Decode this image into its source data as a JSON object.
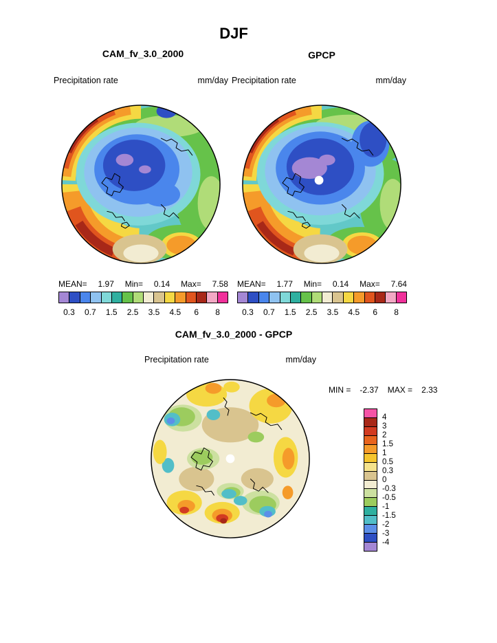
{
  "figure": {
    "season_title": "DJF",
    "diff_title": "CAM_fv_3.0_2000 - GPCP"
  },
  "panels": {
    "cam": {
      "title": "CAM_fv_3.0_2000",
      "field": "Precipitation rate",
      "units": "mm/day",
      "mean_label": "MEAN=",
      "mean": "1.97",
      "min_label": "Min=",
      "min": "0.14",
      "max_label": "Max=",
      "max": "7.58"
    },
    "gpcp": {
      "title": "GPCP",
      "field": "Precipitation rate",
      "units": "mm/day",
      "mean_label": "MEAN=",
      "mean": "1.77",
      "min_label": "Min=",
      "min": "0.14",
      "max_label": "Max=",
      "max": "7.64"
    },
    "diff": {
      "field": "Precipitation rate",
      "units": "mm/day",
      "min_label": "MIN =",
      "min": "-2.37",
      "max_label": "MAX =",
      "max": "2.33"
    }
  },
  "precip_colorbar": {
    "ticks": [
      "0.3",
      "0.7",
      "1.5",
      "2.5",
      "3.5",
      "4.5",
      "6",
      "8"
    ],
    "colors": [
      "#A487D4",
      "#2E4FC4",
      "#4A86EC",
      "#8FC2F0",
      "#7FD8D8",
      "#2FB0A0",
      "#66C24A",
      "#B0DC78",
      "#F2ECD2",
      "#D9C48F",
      "#F5D843",
      "#F59B2A",
      "#E0551E",
      "#A82818",
      "#F2A8C4",
      "#F0309A"
    ]
  },
  "diff_colorbar": {
    "labels": [
      "4",
      "3",
      "2",
      "1.5",
      "1",
      "0.5",
      "0.3",
      "0",
      "-0.3",
      "-0.5",
      "-1",
      "-1.5",
      "-2",
      "-3",
      "-4"
    ],
    "colors": [
      "#F553A6",
      "#A82818",
      "#D23B21",
      "#E8641E",
      "#F59B2A",
      "#F5C52E",
      "#F5E38C",
      "#D9C48F",
      "#F2ECD2",
      "#CCE0A0",
      "#9CCC5E",
      "#2FB0A0",
      "#52BEC8",
      "#5C8FE8",
      "#2E4FC4",
      "#A487D4"
    ]
  },
  "chart_data": [
    {
      "type": "heatmap",
      "title": "CAM_fv_3.0_2000",
      "subtitle": "DJF",
      "variable": "Precipitation rate",
      "units": "mm/day",
      "projection": "north-polar-stereographic",
      "stats": {
        "mean": 1.97,
        "min": 0.14,
        "max": 7.58
      },
      "contour_levels": [
        0.3,
        0.7,
        1.5,
        2.5,
        3.5,
        4.5,
        6,
        8
      ],
      "legend_position": "bottom"
    },
    {
      "type": "heatmap",
      "title": "GPCP",
      "subtitle": "DJF",
      "variable": "Precipitation rate",
      "units": "mm/day",
      "projection": "north-polar-stereographic",
      "stats": {
        "mean": 1.77,
        "min": 0.14,
        "max": 7.64
      },
      "contour_levels": [
        0.3,
        0.7,
        1.5,
        2.5,
        3.5,
        4.5,
        6,
        8
      ],
      "legend_position": "bottom"
    },
    {
      "type": "heatmap",
      "title": "CAM_fv_3.0_2000 - GPCP",
      "subtitle": "DJF difference",
      "variable": "Precipitation rate",
      "units": "mm/day",
      "projection": "north-polar-stereographic",
      "stats": {
        "min": -2.37,
        "max": 2.33
      },
      "contour_levels": [
        -4,
        -3,
        -2,
        -1.5,
        -1,
        -0.5,
        -0.3,
        0,
        0.3,
        0.5,
        1,
        1.5,
        2,
        3,
        4
      ],
      "legend_position": "right"
    }
  ]
}
